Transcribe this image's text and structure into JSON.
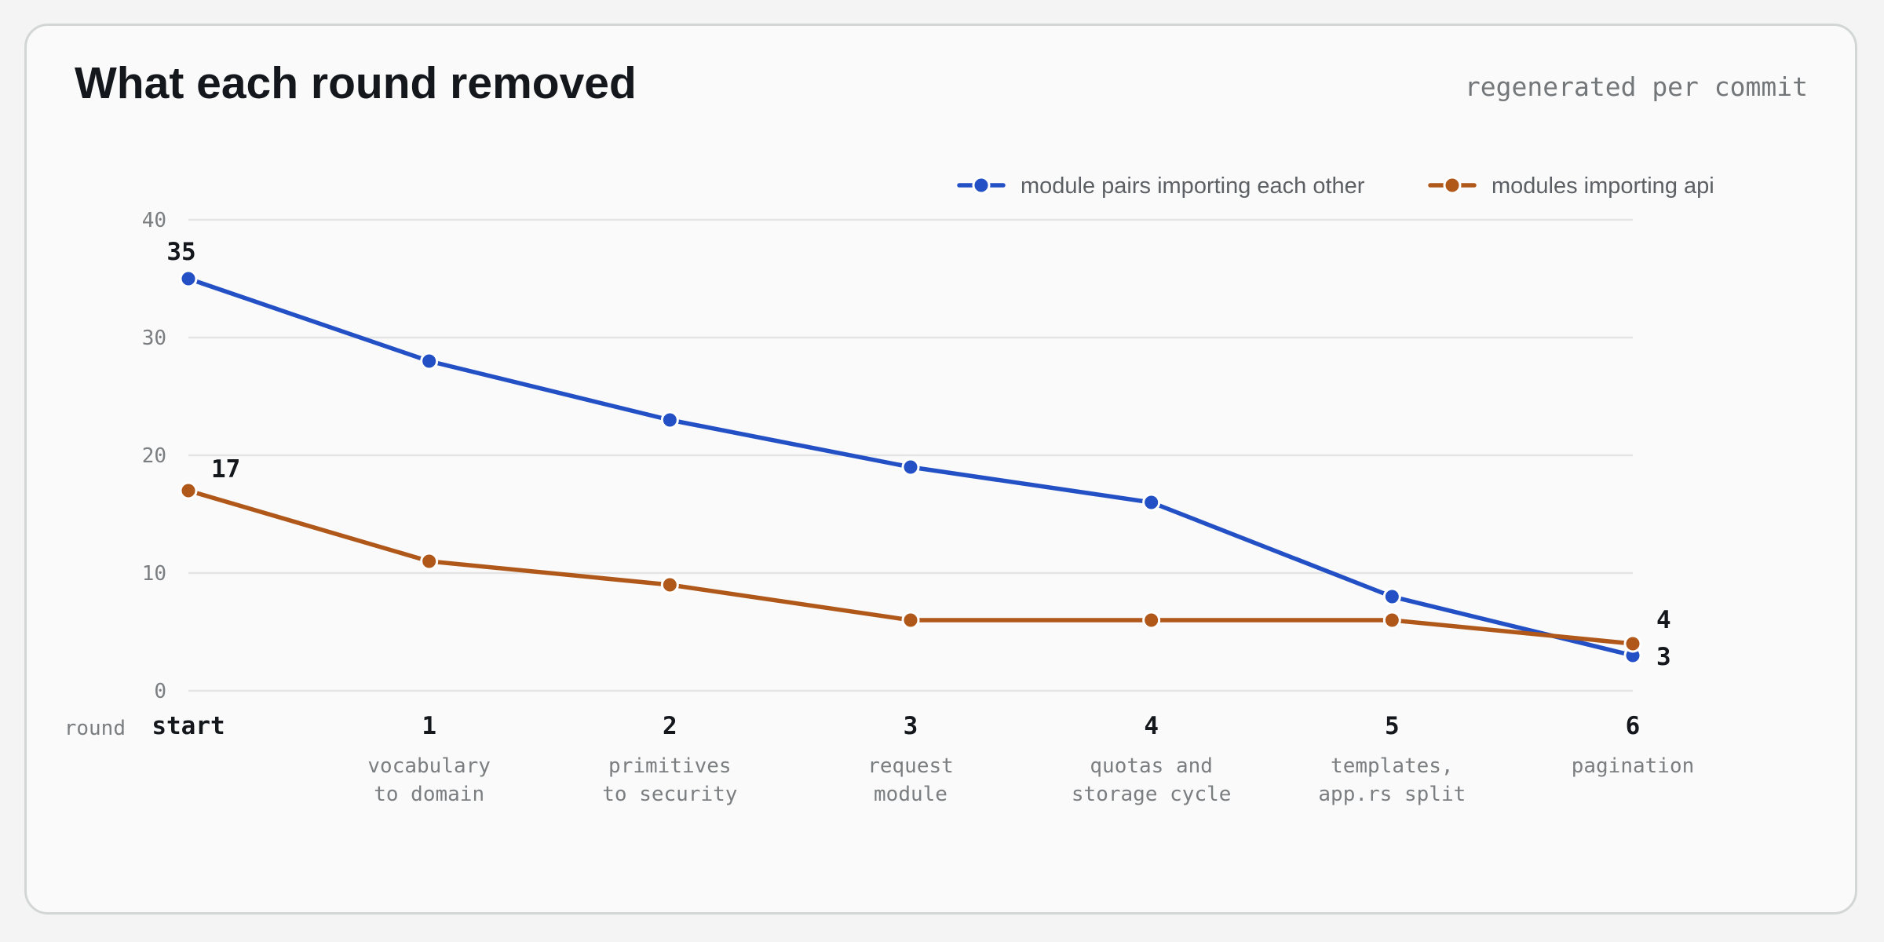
{
  "header": {
    "title": "What each round removed",
    "note": "regenerated per commit"
  },
  "chart_data": {
    "type": "line",
    "title": "What each round removed",
    "xlabel": "round",
    "ylabel": "",
    "ylim": [
      0,
      40
    ],
    "yticks": [
      0,
      10,
      20,
      30,
      40
    ],
    "grid": true,
    "legend_position": "top-right",
    "categories": [
      "start",
      "1",
      "2",
      "3",
      "4",
      "5",
      "6"
    ],
    "category_notes": [
      [],
      [
        "vocabulary",
        "to domain"
      ],
      [
        "primitives",
        "to security"
      ],
      [
        "request",
        "module"
      ],
      [
        "quotas and",
        "storage cycle"
      ],
      [
        "templates,",
        "app.rs split"
      ],
      [
        "pagination"
      ]
    ],
    "series": [
      {
        "name": "module pairs importing each other",
        "color": "#2350c5",
        "values": [
          35,
          28,
          23,
          19,
          16,
          8,
          3
        ],
        "labels": [
          "35",
          "",
          "",
          "",
          "",
          "",
          "3"
        ]
      },
      {
        "name": "modules importing api",
        "color": "#b0571a",
        "values": [
          17,
          11,
          9,
          6,
          6,
          6,
          4
        ],
        "labels": [
          "17",
          "",
          "",
          "",
          "",
          "",
          "4"
        ]
      }
    ]
  }
}
